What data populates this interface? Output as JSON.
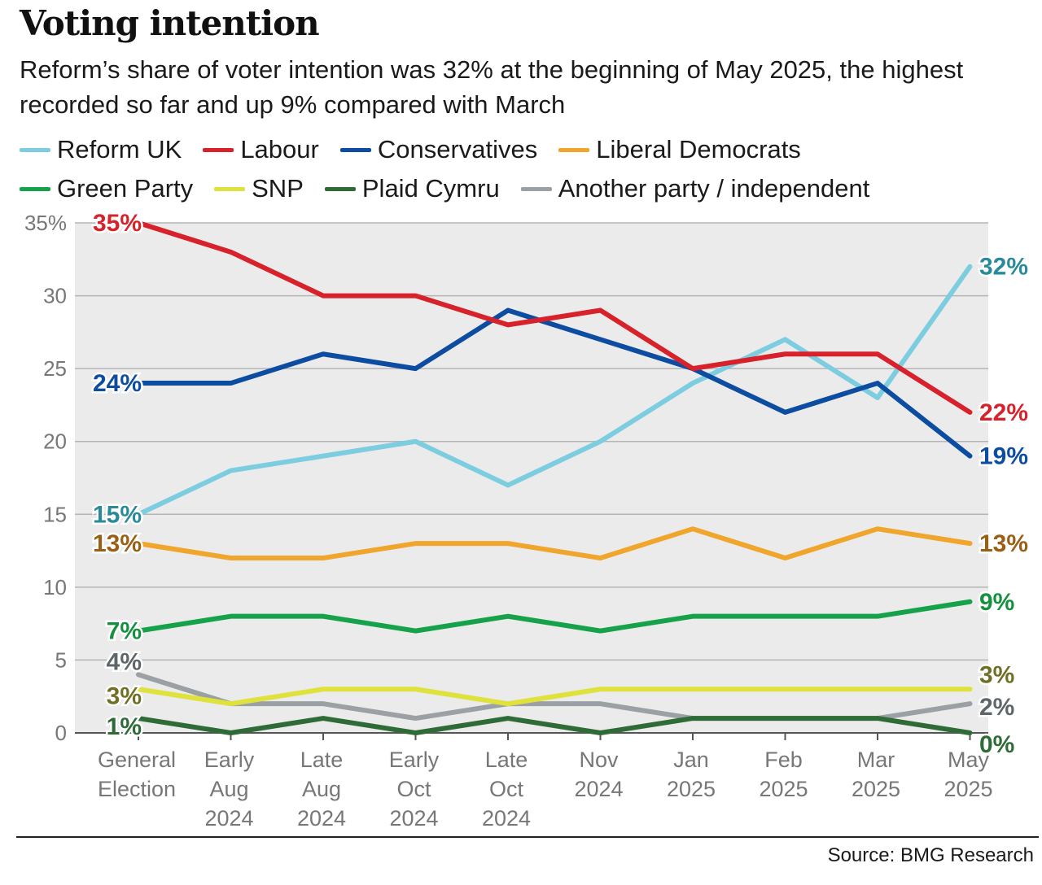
{
  "chart_data": {
    "type": "line",
    "title": "Voting intention",
    "subtitle": "Reform’s share of voter intention was 32% at the beginning of May 2025, the highest recorded so far and up 9% compared with March",
    "categories": [
      [
        "General",
        "Election"
      ],
      [
        "Early",
        "Aug",
        "2024"
      ],
      [
        "Late",
        "Aug",
        "2024"
      ],
      [
        "Early",
        "Oct",
        "2024"
      ],
      [
        "Late",
        "Oct",
        "2024"
      ],
      [
        "Nov",
        "2024"
      ],
      [
        "Jan",
        "2025"
      ],
      [
        "Feb",
        "2025"
      ],
      [
        "Mar",
        "2025"
      ],
      [
        "May",
        "2025"
      ]
    ],
    "y_ticks": [
      "0",
      "5",
      "10",
      "15",
      "20",
      "25",
      "30",
      "35%"
    ],
    "ylim": [
      0,
      35
    ],
    "grid": true,
    "series": [
      {
        "name": "Reform UK",
        "color": "#7dcde0",
        "labelColor": "#2a8a9a",
        "values": [
          15,
          18,
          19,
          20,
          17,
          20,
          24,
          27,
          23,
          32
        ],
        "startLabel": "15%",
        "endLabel": "32%"
      },
      {
        "name": "Labour",
        "color": "#d7222b",
        "labelColor": "#d7222b",
        "values": [
          35,
          33,
          30,
          30,
          28,
          29,
          25,
          26,
          26,
          22
        ],
        "startLabel": "35%",
        "endLabel": "22%"
      },
      {
        "name": "Conservatives",
        "color": "#0d4da1",
        "labelColor": "#0d4da1",
        "values": [
          24,
          24,
          26,
          25,
          29,
          27,
          25,
          22,
          24,
          19
        ],
        "startLabel": "24%",
        "endLabel": "19%"
      },
      {
        "name": "Liberal Democrats",
        "color": "#f0a52c",
        "labelColor": "#9a5e14",
        "values": [
          13,
          12,
          12,
          13,
          13,
          12,
          14,
          12,
          14,
          13
        ],
        "startLabel": "13%",
        "endLabel": "13%"
      },
      {
        "name": "Green Party",
        "color": "#15a24a",
        "labelColor": "#15903f",
        "values": [
          7,
          8,
          8,
          7,
          8,
          7,
          8,
          8,
          8,
          9
        ],
        "startLabel": "7%",
        "endLabel": "9%"
      },
      {
        "name": "SNP",
        "color": "#dfe13c",
        "labelColor": "#6f7025",
        "values": [
          3,
          2,
          3,
          3,
          2,
          3,
          3,
          3,
          3,
          3
        ],
        "startLabel": "3%",
        "endLabel": "3%"
      },
      {
        "name": "Plaid Cymru",
        "color": "#2e6b37",
        "labelColor": "#2e6b37",
        "values": [
          1,
          0,
          1,
          0,
          1,
          0,
          1,
          1,
          1,
          0
        ],
        "startLabel": "1%",
        "endLabel": "0%"
      },
      {
        "name": "Another party / independent",
        "color": "#9aa0a4",
        "labelColor": "#5f6669",
        "values": [
          4,
          2,
          2,
          1,
          2,
          2,
          1,
          1,
          1,
          2
        ],
        "startLabel": "4%",
        "endLabel": "2%"
      }
    ],
    "source": "Source: BMG Research"
  }
}
